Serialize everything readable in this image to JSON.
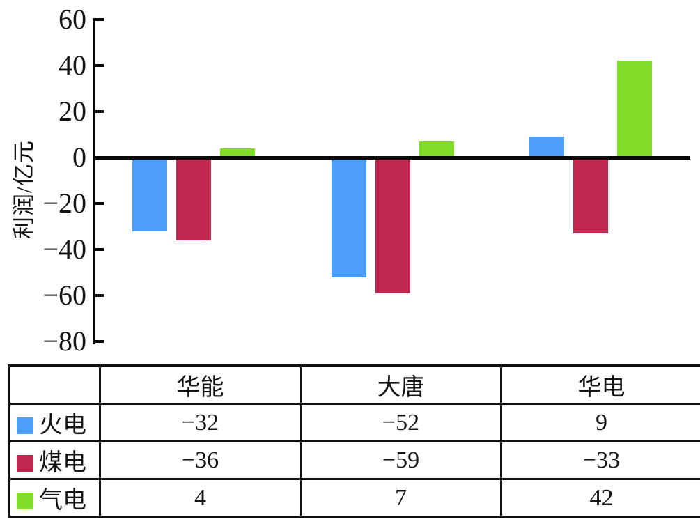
{
  "chart_data": {
    "type": "bar",
    "title": "",
    "xlabel": "",
    "ylabel": "利润/亿元",
    "categories": [
      "华能",
      "大唐",
      "华电"
    ],
    "series": [
      {
        "name": "火电",
        "color": "#4C9EF8",
        "values": [
          -32,
          -52,
          9
        ]
      },
      {
        "name": "煤电",
        "color": "#C0274E",
        "values": [
          -36,
          -59,
          -33
        ]
      },
      {
        "name": "气电",
        "color": "#7FDD28",
        "values": [
          4,
          7,
          42
        ]
      }
    ],
    "ylim": [
      -80,
      60
    ],
    "yticks": [
      60,
      40,
      20,
      0,
      -20,
      -40,
      -60,
      -80
    ],
    "grid": false,
    "legend_position": "table-below-chart"
  },
  "table": {
    "header": [
      "",
      "华能",
      "大唐",
      "华电"
    ],
    "rows": [
      {
        "legend_color": "#4C9EF8",
        "label": "火电",
        "values": [
          "−32",
          "−52",
          "9"
        ]
      },
      {
        "legend_color": "#C0274E",
        "label": "煤电",
        "values": [
          "−36",
          "−59",
          "−33"
        ]
      },
      {
        "legend_color": "#7FDD28",
        "label": "气电",
        "values": [
          "4",
          "7",
          "42"
        ]
      }
    ]
  },
  "colors": {
    "axis": "#0a0a0a",
    "thermal_blue": "#4C9EF8",
    "coal_crimson": "#C0274E",
    "gas_green": "#7FDD28"
  }
}
